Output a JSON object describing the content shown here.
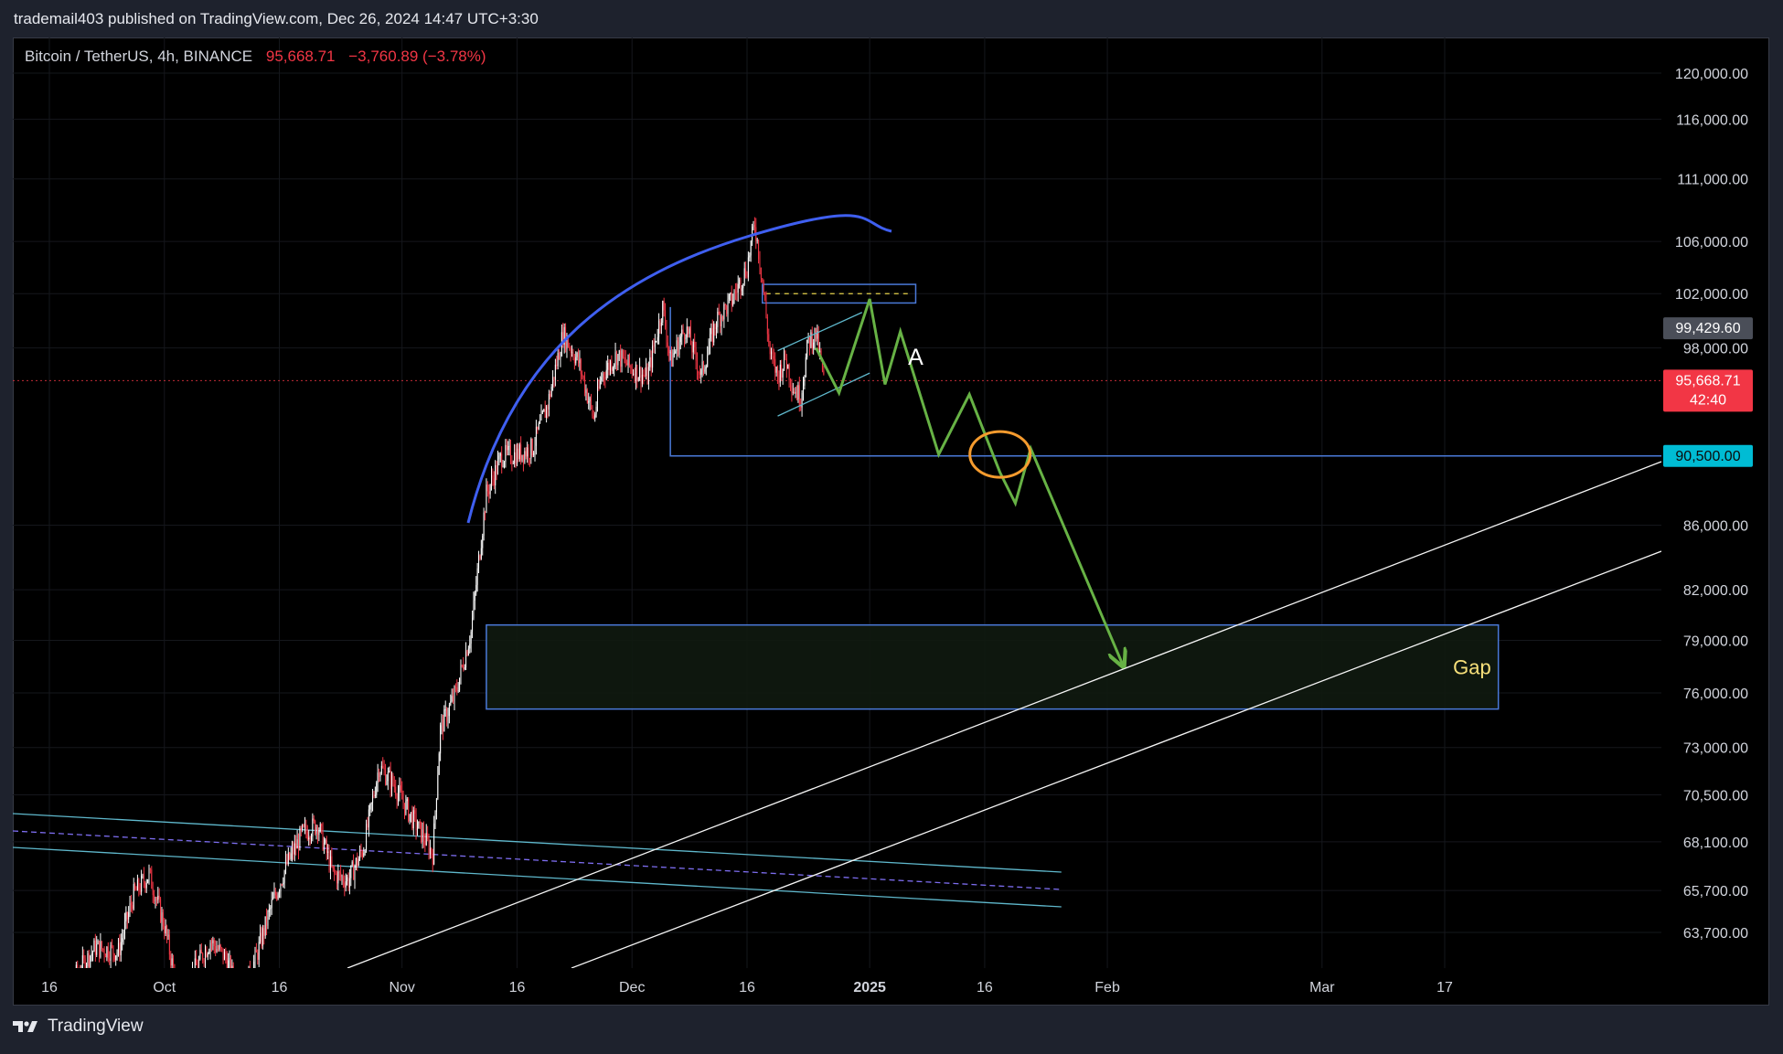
{
  "header": {
    "published_line": "trademail403 published on TradingView.com, Dec 26, 2024 14:47 UTC+3:30"
  },
  "legend": {
    "symbol": "Bitcoin / TetherUS, 4h, BINANCE",
    "price": "95,668.71",
    "change": "−3,760.89 (−3.78%)"
  },
  "footer": {
    "brand": "TradingView"
  },
  "colors": {
    "background": "#000000",
    "up": "#ffffff",
    "down": "#f23645",
    "arc": "#3f5ff0",
    "path": "#67b245",
    "zone": "#4a79d8",
    "channel": "#5fb8cc",
    "circle": "#f59b2e",
    "gap_label": "#f7e07a",
    "support_tag": "#00bcd4",
    "price_tag": "#f23645"
  },
  "chart_data": {
    "type": "candlestick",
    "symbol": "Bitcoin / TetherUS",
    "interval": "4h",
    "exchange": "BINANCE",
    "y_scale": "log",
    "ylim": [
      61500,
      123000
    ],
    "y_ticks": [
      {
        "value": 120000,
        "label": "120,000.00"
      },
      {
        "value": 116000,
        "label": "116,000.00"
      },
      {
        "value": 111000,
        "label": "111,000.00"
      },
      {
        "value": 106000,
        "label": "106,000.00"
      },
      {
        "value": 102000,
        "label": "102,000.00"
      },
      {
        "value": 98000,
        "label": "98,000.00"
      },
      {
        "value": 86000,
        "label": "86,000.00"
      },
      {
        "value": 82000,
        "label": "82,000.00"
      },
      {
        "value": 79000,
        "label": "79,000.00"
      },
      {
        "value": 76000,
        "label": "76,000.00"
      },
      {
        "value": 73000,
        "label": "73,000.00"
      },
      {
        "value": 70500,
        "label": "70,500.00"
      },
      {
        "value": 68100,
        "label": "68,100.00"
      },
      {
        "value": 65700,
        "label": "65,700.00"
      },
      {
        "value": 63700,
        "label": "63,700.00"
      }
    ],
    "x_ticks": [
      {
        "date": "2024-09-16",
        "label": "16",
        "bold": false
      },
      {
        "date": "2024-10-01",
        "label": "Oct",
        "bold": false
      },
      {
        "date": "2024-10-16",
        "label": "16",
        "bold": false
      },
      {
        "date": "2024-11-01",
        "label": "Nov",
        "bold": false
      },
      {
        "date": "2024-11-16",
        "label": "16",
        "bold": false
      },
      {
        "date": "2024-12-01",
        "label": "Dec",
        "bold": false
      },
      {
        "date": "2024-12-16",
        "label": "16",
        "bold": false
      },
      {
        "date": "2025-01-01",
        "label": "2025",
        "bold": true
      },
      {
        "date": "2025-01-16",
        "label": "16",
        "bold": false
      },
      {
        "date": "2025-02-01",
        "label": "Feb",
        "bold": false
      },
      {
        "date": "2025-03-01",
        "label": "Mar",
        "bold": false
      },
      {
        "date": "2025-03-17",
        "label": "17",
        "bold": false
      }
    ],
    "price_tags": [
      {
        "value": 99429.6,
        "label": "99,429.60",
        "style": "gray"
      },
      {
        "value": 95668.71,
        "label": "95,668.71",
        "sub": "42:40",
        "style": "red"
      },
      {
        "value": 90500,
        "label": "90,500.00",
        "style": "cyan"
      }
    ],
    "price_series": [
      [
        "2024-09-16",
        58500
      ],
      [
        "2024-09-19",
        61500
      ],
      [
        "2024-09-22",
        63000
      ],
      [
        "2024-09-25",
        62800
      ],
      [
        "2024-09-27",
        65500
      ],
      [
        "2024-09-29",
        66500
      ],
      [
        "2024-10-01",
        64000
      ],
      [
        "2024-10-03",
        60500
      ],
      [
        "2024-10-05",
        62000
      ],
      [
        "2024-10-07",
        63300
      ],
      [
        "2024-10-09",
        62500
      ],
      [
        "2024-10-11",
        60700
      ],
      [
        "2024-10-13",
        62600
      ],
      [
        "2024-10-15",
        65000
      ],
      [
        "2024-10-17",
        67000
      ],
      [
        "2024-10-19",
        68500
      ],
      [
        "2024-10-21",
        69000
      ],
      [
        "2024-10-23",
        66500
      ],
      [
        "2024-10-25",
        66200
      ],
      [
        "2024-10-27",
        67800
      ],
      [
        "2024-10-29",
        72000
      ],
      [
        "2024-10-31",
        71000
      ],
      [
        "2024-11-02",
        69500
      ],
      [
        "2024-11-04",
        68200
      ],
      [
        "2024-11-05",
        67500
      ],
      [
        "2024-11-06",
        74000
      ],
      [
        "2024-11-08",
        76000
      ],
      [
        "2024-11-10",
        79500
      ],
      [
        "2024-11-12",
        88000
      ],
      [
        "2024-11-14",
        90500
      ],
      [
        "2024-11-16",
        90600
      ],
      [
        "2024-11-18",
        91000
      ],
      [
        "2024-11-20",
        94000
      ],
      [
        "2024-11-22",
        99000
      ],
      [
        "2024-11-24",
        97000
      ],
      [
        "2024-11-26",
        93000
      ],
      [
        "2024-11-27",
        96000
      ],
      [
        "2024-11-29",
        97500
      ],
      [
        "2024-12-01",
        96500
      ],
      [
        "2024-12-03",
        95900
      ],
      [
        "2024-12-05",
        101000
      ],
      [
        "2024-12-06",
        97000
      ],
      [
        "2024-12-08",
        99500
      ],
      [
        "2024-12-10",
        96000
      ],
      [
        "2024-12-12",
        100000
      ],
      [
        "2024-12-14",
        101500
      ],
      [
        "2024-12-16",
        104000
      ],
      [
        "2024-12-17",
        107500
      ],
      [
        "2024-12-18",
        103000
      ],
      [
        "2024-12-19",
        97500
      ],
      [
        "2024-12-20",
        96000
      ],
      [
        "2024-12-21",
        97300
      ],
      [
        "2024-12-22",
        95200
      ],
      [
        "2024-12-23",
        94500
      ],
      [
        "2024-12-24",
        98500
      ],
      [
        "2024-12-25",
        99000
      ],
      [
        "2024-12-26",
        95668.71
      ]
    ],
    "zones": [
      {
        "name": "Gap",
        "label": "Gap",
        "x0": "2024-11-12",
        "x1": "2025-03-24",
        "y0": 75100,
        "y1": 79900
      },
      {
        "name": "supply",
        "x0": "2024-12-18",
        "x1": "2025-01-07",
        "y0": 101300,
        "y1": 102700
      }
    ],
    "annotations": {
      "wave_label": "A",
      "support_level": 90500,
      "current_price_line": 95668.71
    }
  }
}
